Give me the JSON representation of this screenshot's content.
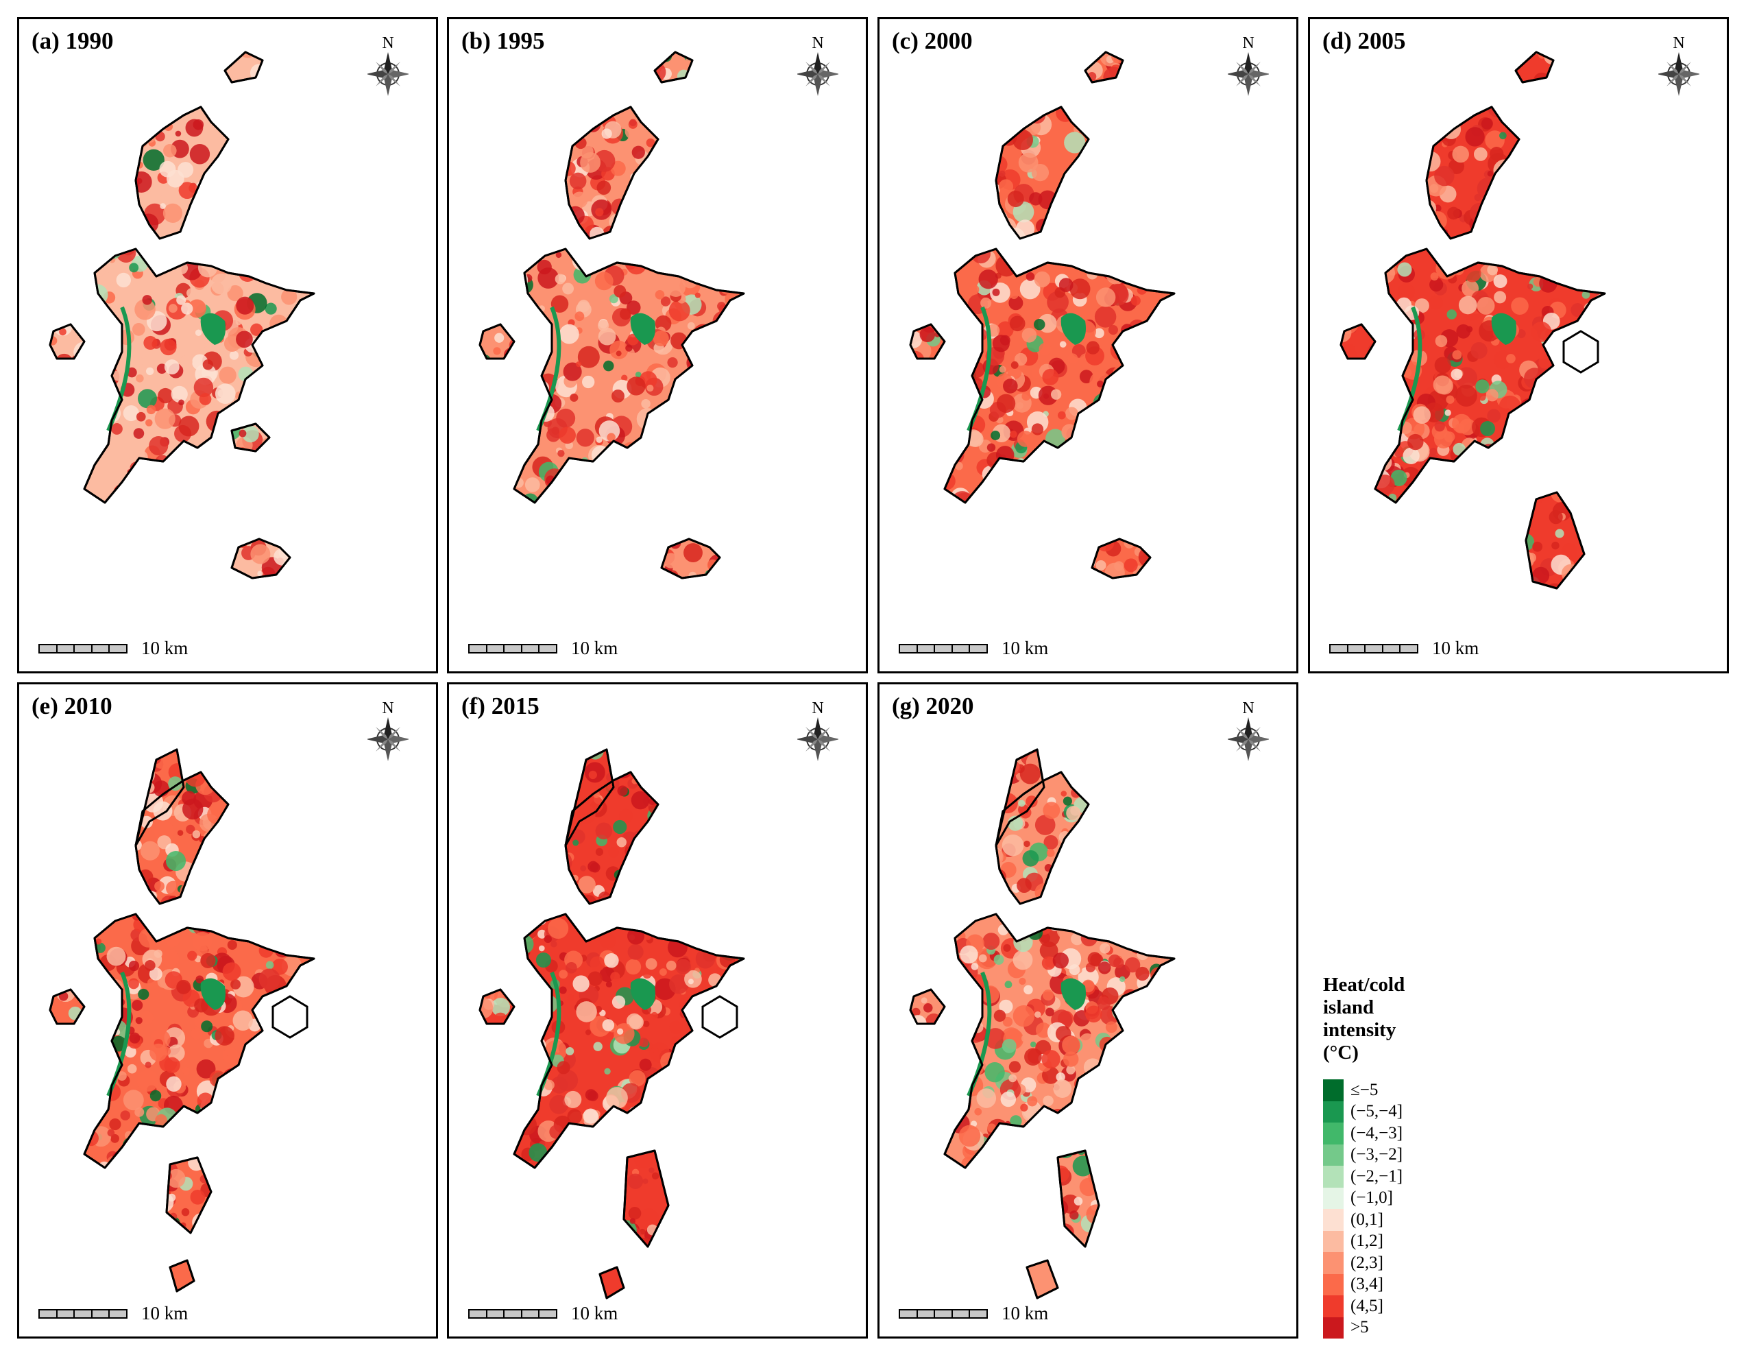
{
  "panels": [
    {
      "title": "(a) 1990",
      "year": 1990,
      "scale_label": "10 km",
      "north": "N"
    },
    {
      "title": "(b) 1995",
      "year": 1995,
      "scale_label": "10 km",
      "north": "N"
    },
    {
      "title": "(c) 2000",
      "year": 2000,
      "scale_label": "10 km",
      "north": "N"
    },
    {
      "title": "(d) 2005",
      "year": 2005,
      "scale_label": "10 km",
      "north": "N"
    },
    {
      "title": "(e) 2010",
      "year": 2010,
      "scale_label": "10 km",
      "north": "N"
    },
    {
      "title": "(f) 2015",
      "year": 2015,
      "scale_label": "10 km",
      "north": "N"
    },
    {
      "title": "(g) 2020",
      "year": 2020,
      "scale_label": "10 km",
      "north": "N"
    }
  ],
  "legend": {
    "title": "Heat/cold\nisland\nintensity\n(°C)",
    "classes": [
      {
        "label": "≤−5",
        "color": "#006d2c"
      },
      {
        "label": "(−5,−4]",
        "color": "#1a9850"
      },
      {
        "label": "(−4,−3]",
        "color": "#41b86a"
      },
      {
        "label": "(−3,−2]",
        "color": "#74c98a"
      },
      {
        "label": "(−2,−1]",
        "color": "#b3e2b8"
      },
      {
        "label": "(−1,0]",
        "color": "#e5f5e6"
      },
      {
        "label": "(0,1]",
        "color": "#fde0d2"
      },
      {
        "label": "(1,2]",
        "color": "#fcbba1"
      },
      {
        "label": "(2,3]",
        "color": "#fc9272"
      },
      {
        "label": "(3,4]",
        "color": "#fb6a4a"
      },
      {
        "label": "(4,5]",
        "color": "#ef3b2c"
      },
      {
        "label": ">5",
        "color": "#cb181d"
      }
    ]
  }
}
